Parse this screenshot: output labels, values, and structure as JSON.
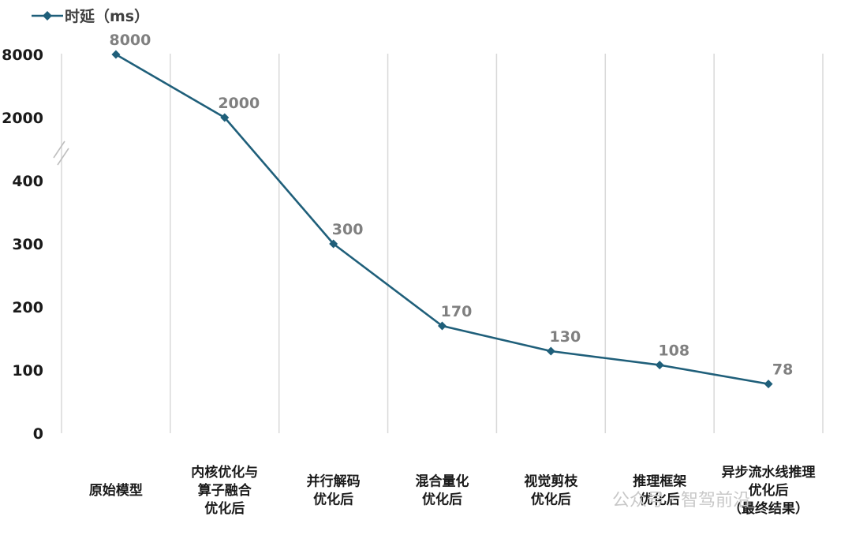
{
  "chart_data": {
    "type": "line",
    "categories": [
      [
        "原始模型"
      ],
      [
        "内核优化与",
        "算子融合",
        "优化后"
      ],
      [
        "并行解码",
        "优化后"
      ],
      [
        "混合量化",
        "优化后"
      ],
      [
        "视觉剪枝",
        "优化后"
      ],
      [
        "推理框架",
        "优化后"
      ],
      [
        "异步流水线推理",
        "优化后",
        "（最终结果）"
      ]
    ],
    "series": [
      {
        "name": "时延（ms）",
        "values": [
          8000,
          2000,
          300,
          170,
          130,
          108,
          78
        ],
        "data_labels": [
          "8000",
          "2000",
          "300",
          "170",
          "130",
          "108",
          "78"
        ],
        "color": "#1f5f7a",
        "marker": "diamond"
      }
    ],
    "yticks": [
      "0",
      "100",
      "200",
      "300",
      "400",
      "2000",
      "8000"
    ],
    "y_axis_break": "between 400 and 2000",
    "legend": "top-left",
    "grid": "vertical"
  },
  "watermark": "公众号 · 智驾前沿"
}
